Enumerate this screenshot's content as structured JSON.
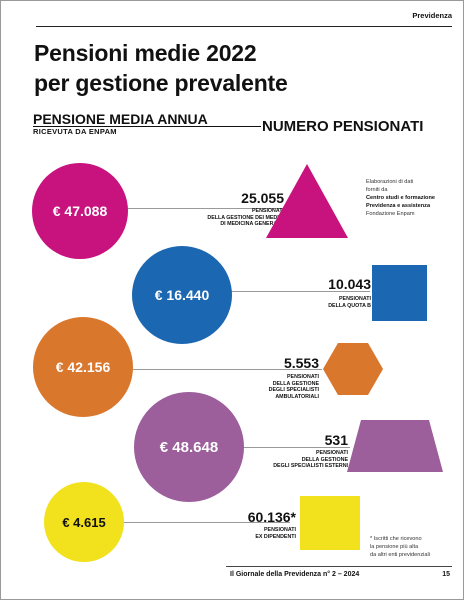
{
  "header": {
    "section": "Previdenza"
  },
  "title": {
    "line1": "Pensioni medie 2022",
    "line2": "per gestione prevalente"
  },
  "left_heading": {
    "main": "PENSIONE MEDIA ANNUA",
    "sub": "RICEVUTA DA ENPAM"
  },
  "right_heading": "NUMERO PENSIONATI",
  "source": {
    "line1": "Elaborazioni di dati",
    "line2": "forniti da",
    "line3": "Centro studi e formazione",
    "line4": "Previdenza e assistenza",
    "line5": "Fondazione Enpam"
  },
  "rows": [
    {
      "amount": "€ 47.088",
      "count": "25.055",
      "label": [
        "PENSIONATI",
        "DELLA GESTIONE DEI MEDICI",
        "DI MEDICINA GENERALE"
      ],
      "color": "#c8137f",
      "shape": "triangle-icon"
    },
    {
      "amount": "€ 16.440",
      "count": "10.043",
      "label": [
        "PENSIONATI",
        "DELLA QUOTA B"
      ],
      "color": "#1c67b1",
      "shape": "square-icon"
    },
    {
      "amount": "€ 42.156",
      "count": "5.553",
      "label": [
        "PENSIONATI",
        "DELLA GESTIONE",
        "DEGLI SPECIALISTI",
        "AMBULATORIALI"
      ],
      "color": "#d9772d",
      "shape": "hexagon-icon"
    },
    {
      "amount": "€ 48.648",
      "count": "531",
      "label": [
        "PENSIONATI",
        "DELLA GESTIONE",
        "DEGLI SPECIALISTI ESTERNI"
      ],
      "color": "#9c5f9c",
      "shape": "trapezoid-icon"
    },
    {
      "amount": "€ 4.615",
      "count": "60.136*",
      "label": [
        "PENSIONATI",
        "EX DIPENDENTI"
      ],
      "color": "#f1e21d",
      "shape": "square-icon"
    }
  ],
  "note": {
    "line1": "* Iscritti che ricevono",
    "line2": "la pensione più alta",
    "line3": "da altri enti previdenziali"
  },
  "footer": {
    "publication": "Il Giornale della Previdenza n° 2 – 2024",
    "page": "15"
  }
}
